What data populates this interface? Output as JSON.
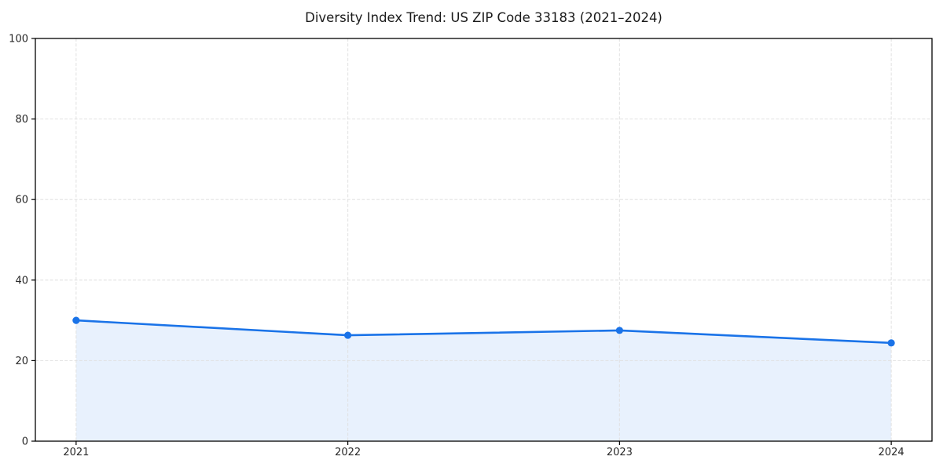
{
  "chart_data": {
    "type": "area",
    "title": "Diversity Index Trend: US ZIP Code 33183 (2021–2024)",
    "series_name": "Diversity Index",
    "x": [
      2021,
      2022,
      2023,
      2024
    ],
    "values": [
      30.0,
      26.3,
      27.5,
      24.4
    ],
    "x_tick_labels": [
      "2021",
      "2022",
      "2023",
      "2024"
    ],
    "y_ticks": [
      0,
      20,
      40,
      60,
      80,
      100
    ],
    "xlim": [
      2020.85,
      2024.15
    ],
    "ylim": [
      0,
      100
    ],
    "xlabel": "",
    "ylabel": "",
    "grid": true,
    "grid_style": "dashed",
    "legend_position": "none",
    "colors": {
      "line": "#1a73e8",
      "marker": "#1a73e8",
      "fill": "#1a73e8",
      "fill_opacity": 0.1,
      "grid": "#e0e0e0",
      "axis": "#000000",
      "text": "#1a1a1a"
    }
  }
}
